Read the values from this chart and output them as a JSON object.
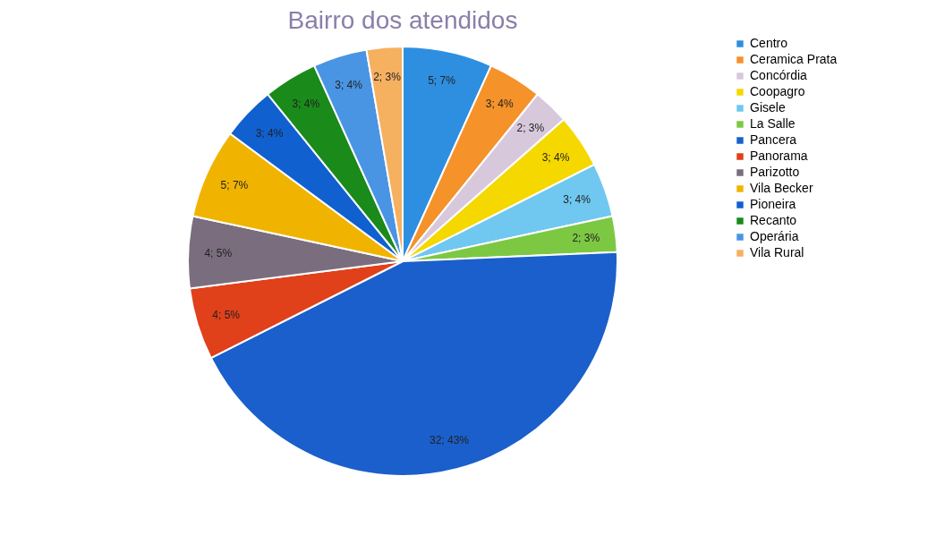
{
  "chart_data": {
    "type": "pie",
    "title": "Bairro dos atendidos",
    "categories": [
      "Centro",
      "Ceramica Prata",
      "Concórdia",
      "Coopagro",
      "Gisele",
      "La Salle",
      "Pancera",
      "Panorama",
      "Parizotto",
      "Vila Becker",
      "Pioneira",
      "Recanto",
      "Operária",
      "Vila Rural"
    ],
    "values": [
      5,
      3,
      2,
      3,
      3,
      2,
      32,
      4,
      4,
      5,
      3,
      3,
      3,
      2
    ],
    "value_labels": [
      "5; 7%",
      "3; 4%",
      "2; 3%",
      "3; 4%",
      "3; 4%",
      "2; 3%",
      "32; 43%",
      "4; 5%",
      "4; 5%",
      "5; 7%",
      "3; 4%",
      "3; 4%",
      "3; 4%",
      "2; 3%"
    ],
    "colors": [
      "#2e8fe0",
      "#f5922a",
      "#d8c8dc",
      "#f5d800",
      "#70c8f0",
      "#7dc843",
      "#1a5fcc",
      "#e0401a",
      "#7a6e7e",
      "#f0b400",
      "#1060d0",
      "#1a8a1a",
      "#4a94e4",
      "#f5b060"
    ],
    "legend": "right"
  }
}
